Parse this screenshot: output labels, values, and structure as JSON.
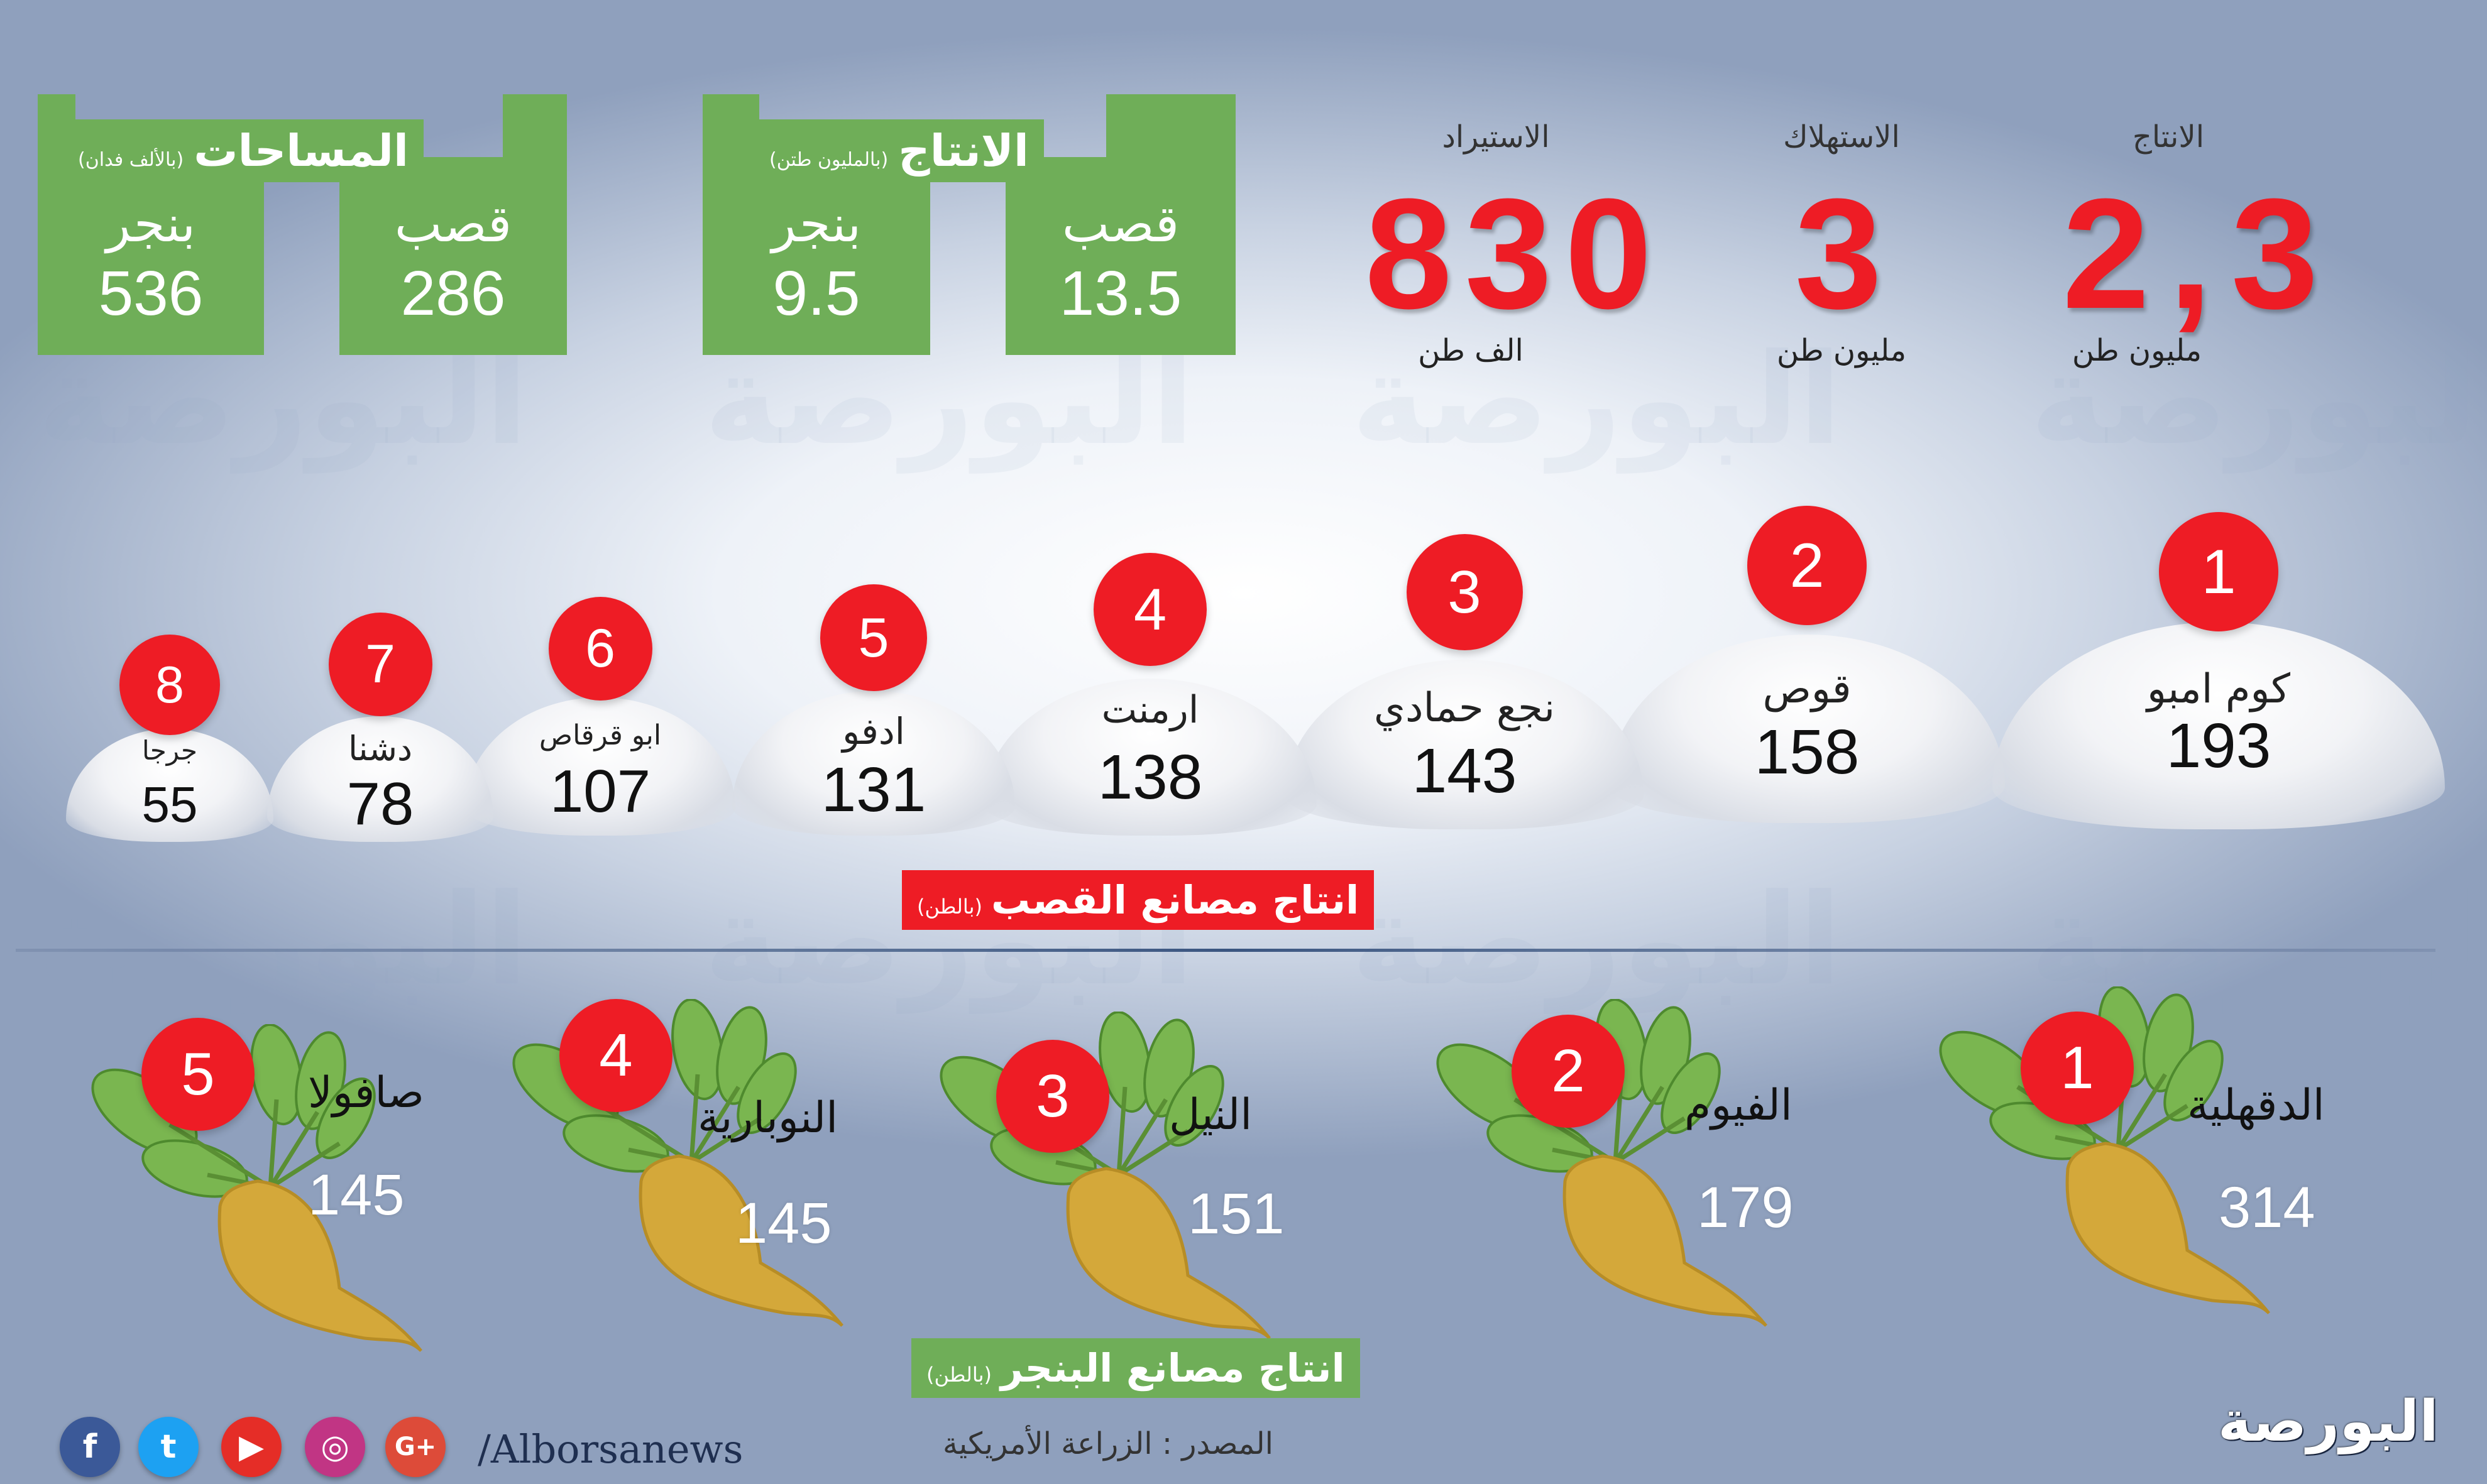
{
  "colors": {
    "accent_red": "#ee1c25",
    "accent_green": "#6fae58",
    "beet_body": "#d4a83a",
    "beet_leaf": "#7ab650"
  },
  "watermark": "البورصة",
  "area_box": {
    "title": "المساحات",
    "unit": "(بالألف فدان)",
    "beet_label": "بنجر",
    "beet_value": "536",
    "cane_label": "قصب",
    "cane_value": "286"
  },
  "production_box": {
    "title": "الانتاج",
    "unit": "(بالمليون طتن)",
    "beet_label": "بنجر",
    "beet_value": "9.5",
    "cane_label": "قصب",
    "cane_value": "13.5"
  },
  "headline_stats": [
    {
      "label": "الانتاج",
      "value": "2,3",
      "unit": "مليون  طن",
      "icon": "production-stat"
    },
    {
      "label": "الاستهلاك",
      "value": "3",
      "unit": "مليون  طن",
      "icon": "consumption-stat"
    },
    {
      "label": "الاستيراد",
      "value": "830",
      "unit": "الف طن",
      "icon": "import-stat"
    }
  ],
  "cane_factories": [
    {
      "rank": "1",
      "name": "كوم امبو",
      "value": "193"
    },
    {
      "rank": "2",
      "name": "قوص",
      "value": "158"
    },
    {
      "rank": "3",
      "name": "نجع حمادي",
      "value": "143"
    },
    {
      "rank": "4",
      "name": "ارمنت",
      "value": "138"
    },
    {
      "rank": "5",
      "name": "ادفو",
      "value": "131"
    },
    {
      "rank": "6",
      "name": "ابو قرقاص",
      "value": "107"
    },
    {
      "rank": "7",
      "name": "دشنا",
      "value": "78"
    },
    {
      "rank": "8",
      "name": "جرجا",
      "value": "55"
    }
  ],
  "cane_caption": {
    "title": "انتاج  مصانع القصب",
    "unit": "(بالطن)"
  },
  "beet_factories": [
    {
      "rank": "1",
      "name": "الدقهلية",
      "value": "314"
    },
    {
      "rank": "2",
      "name": "الفيوم",
      "value": "179"
    },
    {
      "rank": "3",
      "name": "النيل",
      "value": "151"
    },
    {
      "rank": "4",
      "name": "النوبارية",
      "value": "145"
    },
    {
      "rank": "5",
      "name": "صافولا",
      "value": "145"
    }
  ],
  "beet_caption": {
    "title": "انتاج مصانع البنجر",
    "unit": "(بالطن)"
  },
  "source": "المصدر : الزراعة الأمريكية",
  "social": {
    "handle": "/Alborsanews",
    "icons": [
      "facebook-icon",
      "twitter-icon",
      "youtube-icon",
      "instagram-icon",
      "google-plus-icon"
    ],
    "glyphs": [
      "f",
      "t",
      "▶",
      "◎",
      "G+"
    ]
  },
  "logo": {
    "text": "البورصة"
  }
}
